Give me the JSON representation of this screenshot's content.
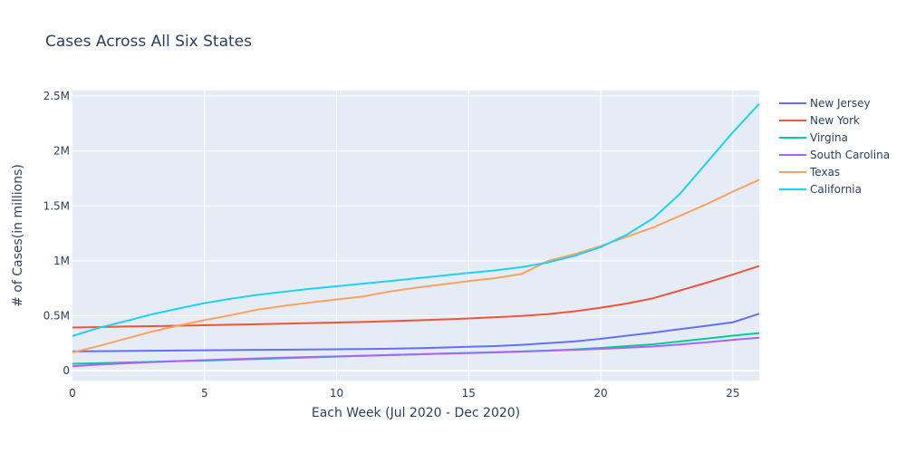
{
  "chart_data": {
    "type": "line",
    "title": "Cases Across All Six States",
    "xlabel": "Each Week (Jul 2020 - Dec 2020)",
    "ylabel": "# of Cases(in millions)",
    "xlim": [
      0,
      26
    ],
    "ylim": [
      -90000,
      2550000
    ],
    "x_ticks": [
      0,
      5,
      10,
      15,
      20,
      25
    ],
    "x_tick_labels": [
      "0",
      "5",
      "10",
      "15",
      "20",
      "25"
    ],
    "y_ticks": [
      0,
      500000,
      1000000,
      1500000,
      2000000,
      2500000
    ],
    "y_tick_labels": [
      "0",
      "0.5M",
      "1M",
      "1.5M",
      "2M",
      "2.5M"
    ],
    "grid": true,
    "legend_position": "right",
    "x": [
      0,
      1,
      2,
      3,
      4,
      5,
      6,
      7,
      8,
      9,
      10,
      11,
      12,
      13,
      14,
      15,
      16,
      17,
      18,
      19,
      20,
      21,
      22,
      23,
      24,
      25,
      26
    ],
    "series": [
      {
        "name": "New Jersey",
        "color": "#636efa",
        "values": [
          175000,
          177000,
          179000,
          181000,
          183000,
          185000,
          187000,
          189000,
          191000,
          193000,
          195000,
          197000,
          200000,
          204000,
          210000,
          217000,
          224000,
          235000,
          250000,
          266000,
          290000,
          318000,
          346000,
          378000,
          408000,
          440000,
          518000
        ]
      },
      {
        "name": "New York",
        "color": "#ef553b",
        "values": [
          393000,
          397000,
          402000,
          405000,
          409000,
          413000,
          418000,
          423000,
          428000,
          433000,
          438000,
          443000,
          450000,
          458000,
          466000,
          475000,
          486000,
          498000,
          514000,
          540000,
          573000,
          611000,
          660000,
          730000,
          800000,
          875000,
          953000
        ]
      },
      {
        "name": "Virgina",
        "color": "#00cc96",
        "values": [
          63000,
          68000,
          74000,
          80000,
          86000,
          92000,
          99000,
          106000,
          113000,
          120000,
          128000,
          135000,
          142000,
          148000,
          155000,
          162000,
          168000,
          175000,
          183000,
          193000,
          207000,
          223000,
          240000,
          266000,
          292000,
          318000,
          342000
        ]
      },
      {
        "name": "South Carolina",
        "color": "#ab63fa",
        "values": [
          40000,
          55000,
          67000,
          77000,
          87000,
          96000,
          104000,
          111000,
          118000,
          124000,
          130000,
          136000,
          142000,
          148000,
          154000,
          160000,
          166000,
          173000,
          181000,
          189000,
          198000,
          209000,
          220000,
          238000,
          258000,
          280000,
          300000
        ]
      },
      {
        "name": "Texas",
        "color": "#ffa15a",
        "values": [
          165000,
          225000,
          290000,
          355000,
          410000,
          460000,
          505000,
          555000,
          590000,
          620000,
          648000,
          675000,
          720000,
          755000,
          785000,
          815000,
          842000,
          880000,
          998000,
          1060000,
          1135000,
          1220000,
          1305000,
          1410000,
          1515000,
          1630000,
          1738000
        ]
      },
      {
        "name": "California",
        "color": "#19d3f3",
        "values": [
          315000,
          390000,
          450000,
          512000,
          565000,
          615000,
          655000,
          690000,
          718000,
          745000,
          768000,
          792000,
          815000,
          840000,
          865000,
          890000,
          912000,
          942000,
          985000,
          1045000,
          1125000,
          1240000,
          1390000,
          1610000,
          1890000,
          2170000,
          2430000
        ]
      }
    ]
  }
}
